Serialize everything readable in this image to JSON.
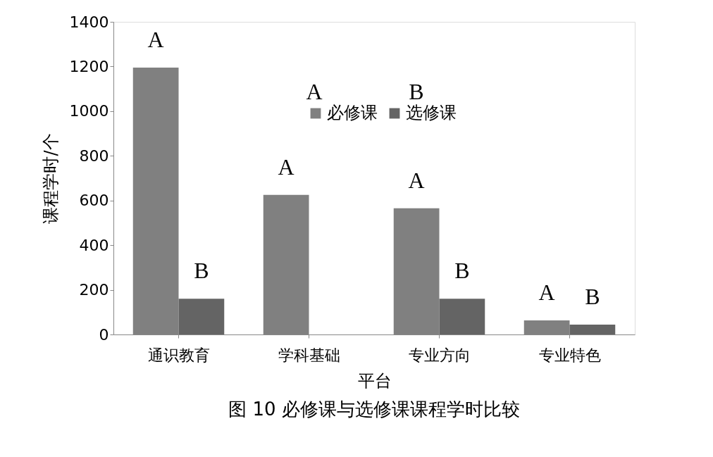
{
  "chart_data": {
    "type": "bar",
    "title": "图 10  必修课与选修课课程学时比较",
    "xlabel": "平台",
    "ylabel": "课程学时/个",
    "categories": [
      "通识教育",
      "学科基础",
      "专业方向",
      "专业特色"
    ],
    "series": [
      {
        "name": "必修课",
        "color": "#808080",
        "values": [
          1195,
          625,
          565,
          63
        ]
      },
      {
        "name": "选修课",
        "color": "#646464",
        "values": [
          160,
          null,
          160,
          44
        ]
      }
    ],
    "ylim": [
      0,
      1400
    ],
    "yticks": [
      0,
      200,
      400,
      600,
      800,
      1000,
      1200,
      1400
    ],
    "grid": false,
    "legend": "top right",
    "annotations": [
      {
        "text": "A",
        "x": "通识教育",
        "y": 1195
      },
      {
        "text": "B",
        "x": "通识教育",
        "y": 160
      },
      {
        "text": "A",
        "x": "学科基础",
        "y": 625
      },
      {
        "text": "A",
        "x": "专业方向",
        "y": 565
      },
      {
        "text": "B",
        "x": "专业方向",
        "y": 160
      },
      {
        "text": "A",
        "x": "专业特色",
        "y": 63
      },
      {
        "text": "B",
        "x": "专业特色",
        "y": 44
      },
      "A",
      "B"
    ]
  }
}
